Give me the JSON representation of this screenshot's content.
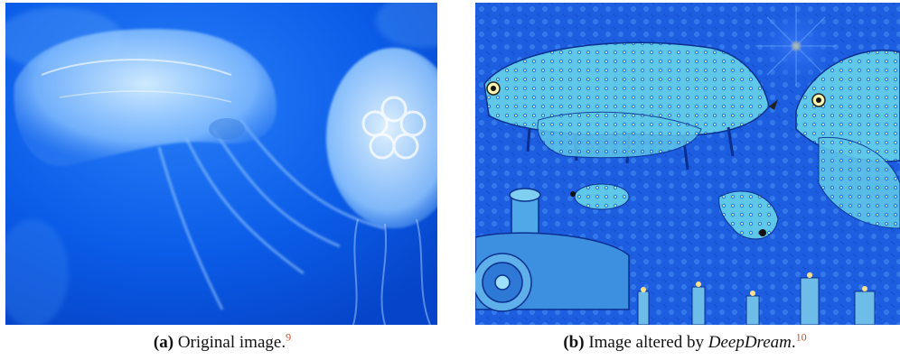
{
  "figure": {
    "panel_a": {
      "tag": "(a)",
      "caption_text": "Original image.",
      "footnote": "9",
      "image": "jellyfish-photo"
    },
    "panel_b": {
      "tag": "(b)",
      "caption_prefix": "Image altered by",
      "caption_emphasis": "DeepDream",
      "caption_suffix": ".",
      "footnote": "10",
      "image": "deepdream-altered-jellyfish"
    }
  },
  "colors": {
    "deep_blue": "#0a55e8",
    "sky_blue": "#3f8ff5",
    "jelly_white": "#dff3ff",
    "footnote_orange": "#d0502a"
  }
}
